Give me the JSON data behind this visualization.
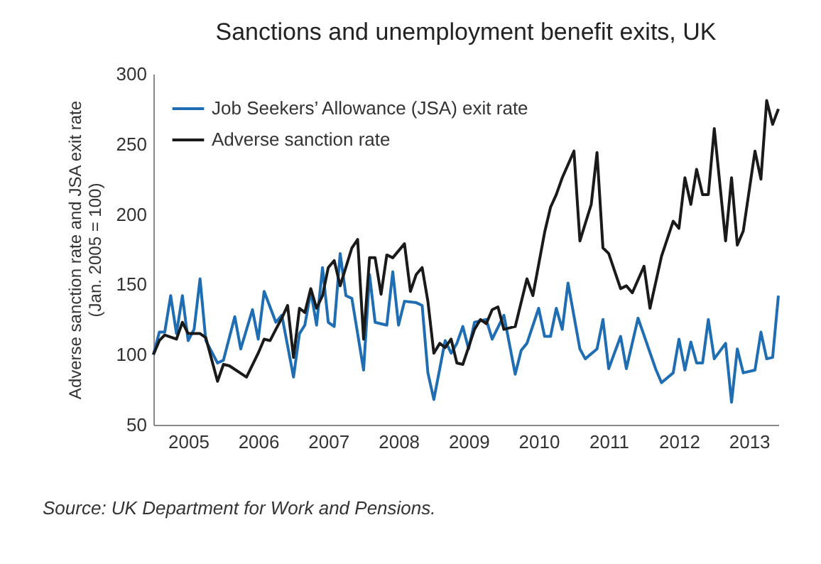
{
  "chart_data": {
    "type": "line",
    "title": "Sanctions and unemployment benefit exits, UK",
    "ylabel": "Adverse sanction rate and JSA exit rate\n(Jan. 2005 = 100)",
    "annotations": [
      "Source: UK Department for Work and Pensions."
    ],
    "xlim": [
      "2005-01",
      "2013-12"
    ],
    "ylim": [
      50,
      300
    ],
    "yticks": [
      50,
      100,
      150,
      200,
      250,
      300
    ],
    "xticks": [
      {
        "value": "2005-07",
        "label": "2005"
      },
      {
        "value": "2006-07",
        "label": "2006"
      },
      {
        "value": "2007-07",
        "label": "2007"
      },
      {
        "value": "2008-07",
        "label": "2008"
      },
      {
        "value": "2009-07",
        "label": "2009"
      },
      {
        "value": "2010-07",
        "label": "2010"
      },
      {
        "value": "2011-07",
        "label": "2011"
      },
      {
        "value": "2012-07",
        "label": "2012"
      },
      {
        "value": "2013-07",
        "label": "2013"
      }
    ],
    "grid": false,
    "legend": "top left",
    "line_style": "solid",
    "marker": "none",
    "series": [
      {
        "name": "Job Seekers’ Allowance (JSA) exit rate",
        "color": "#1f6db3",
        "x": [
          "2005-01",
          "2005-02",
          "2005-03",
          "2005-04",
          "2005-05",
          "2005-06",
          "2005-07",
          "2005-08",
          "2005-09",
          "2005-10",
          "2005-12",
          "2006-01",
          "2006-03",
          "2006-04",
          "2006-06",
          "2006-07",
          "2006-08",
          "2006-10",
          "2006-11",
          "2007-01",
          "2007-02",
          "2007-03",
          "2007-04",
          "2007-05",
          "2007-06",
          "2007-07",
          "2007-08",
          "2007-09",
          "2007-10",
          "2007-11",
          "2008-01",
          "2008-02",
          "2008-03",
          "2008-05",
          "2008-06",
          "2008-07",
          "2008-08",
          "2008-10",
          "2008-11",
          "2008-12",
          "2009-01",
          "2009-03",
          "2009-04",
          "2009-05",
          "2009-06",
          "2009-07",
          "2009-08",
          "2009-10",
          "2009-11",
          "2010-01",
          "2010-03",
          "2010-04",
          "2010-05",
          "2010-07",
          "2010-08",
          "2010-09",
          "2010-10",
          "2010-11",
          "2010-12",
          "2011-02",
          "2011-03",
          "2011-05",
          "2011-06",
          "2011-07",
          "2011-09",
          "2011-10",
          "2011-12",
          "2012-03",
          "2012-04",
          "2012-06",
          "2012-07",
          "2012-08",
          "2012-09",
          "2012-10",
          "2012-11",
          "2012-12",
          "2013-01",
          "2013-03",
          "2013-04",
          "2013-05",
          "2013-06",
          "2013-08",
          "2013-09",
          "2013-10",
          "2013-11",
          "2013-12"
        ],
        "values": [
          100,
          116,
          116,
          142,
          115,
          142,
          110,
          118,
          154,
          110,
          94,
          96,
          127,
          104,
          132,
          111,
          145,
          123,
          128,
          84,
          115,
          121,
          145,
          121,
          162,
          123,
          120,
          172,
          142,
          140,
          89,
          157,
          123,
          121,
          159,
          121,
          138,
          137,
          135,
          87,
          68,
          110,
          101,
          108,
          120,
          104,
          123,
          125,
          111,
          128,
          86,
          103,
          108,
          133,
          113,
          113,
          133,
          118,
          151,
          104,
          97,
          104,
          125,
          90,
          113,
          90,
          126,
          90,
          80,
          87,
          111,
          89,
          109,
          94,
          94,
          125,
          97,
          108,
          66,
          104,
          87,
          89,
          116,
          97,
          98,
          142
        ]
      },
      {
        "name": "Adverse sanction rate",
        "color": "#1a1a1a",
        "x": [
          "2005-01",
          "2005-02",
          "2005-03",
          "2005-05",
          "2005-06",
          "2005-07",
          "2005-09",
          "2005-10",
          "2005-12",
          "2006-01",
          "2006-02",
          "2006-05",
          "2006-07",
          "2006-08",
          "2006-09",
          "2006-10",
          "2006-11",
          "2006-12",
          "2007-01",
          "2007-02",
          "2007-03",
          "2007-04",
          "2007-05",
          "2007-06",
          "2007-07",
          "2007-08",
          "2007-09",
          "2007-11",
          "2007-12",
          "2008-01",
          "2008-02",
          "2008-03",
          "2008-04",
          "2008-05",
          "2008-06",
          "2008-08",
          "2008-09",
          "2008-10",
          "2008-11",
          "2008-12",
          "2009-01",
          "2009-02",
          "2009-03",
          "2009-04",
          "2009-05",
          "2009-06",
          "2009-08",
          "2009-09",
          "2009-10",
          "2009-11",
          "2009-12",
          "2010-01",
          "2010-03",
          "2010-05",
          "2010-06",
          "2010-08",
          "2010-09",
          "2010-10",
          "2010-11",
          "2011-01",
          "2011-02",
          "2011-04",
          "2011-05",
          "2011-06",
          "2011-07",
          "2011-09",
          "2011-10",
          "2011-11",
          "2012-01",
          "2012-02",
          "2012-04",
          "2012-06",
          "2012-07",
          "2012-08",
          "2012-09",
          "2012-10",
          "2012-11",
          "2012-12",
          "2013-01",
          "2013-03",
          "2013-04",
          "2013-05",
          "2013-06",
          "2013-08",
          "2013-09",
          "2013-10",
          "2013-11",
          "2013-12"
        ],
        "values": [
          100,
          110,
          114,
          111,
          123,
          115,
          115,
          112,
          81,
          93,
          92,
          84,
          101,
          111,
          110,
          118,
          126,
          135,
          98,
          133,
          130,
          147,
          133,
          142,
          162,
          167,
          149,
          176,
          182,
          111,
          169,
          169,
          143,
          171,
          169,
          179,
          145,
          157,
          162,
          138,
          101,
          108,
          105,
          111,
          94,
          93,
          118,
          125,
          122,
          132,
          134,
          118,
          120,
          154,
          142,
          187,
          205,
          214,
          226,
          245,
          181,
          207,
          244,
          176,
          172,
          147,
          149,
          144,
          163,
          133,
          170,
          195,
          190,
          226,
          207,
          232,
          214,
          214,
          261,
          181,
          226,
          178,
          188,
          245,
          225,
          281,
          264,
          275
        ]
      }
    ]
  }
}
